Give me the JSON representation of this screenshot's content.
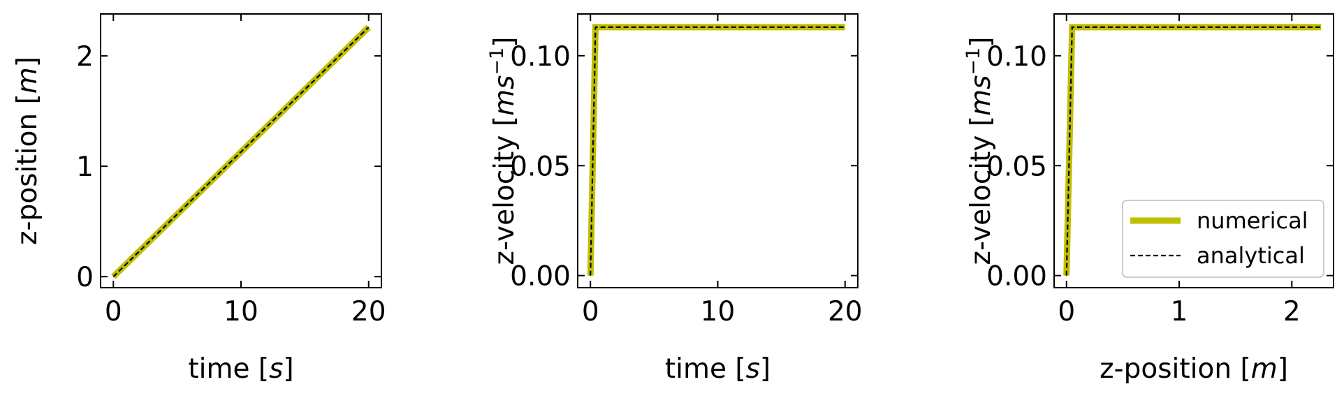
{
  "colors": {
    "numerical": "#bfbf00",
    "analytical": "#000000",
    "axes": "#000000",
    "legend_border": "#cccccc",
    "background": "#ffffff"
  },
  "legend": {
    "placement": "lower-right",
    "subplot": 2,
    "entries": [
      {
        "series": "numerical",
        "label": "numerical",
        "style": "thick-solid"
      },
      {
        "series": "analytical",
        "label": "analytical",
        "style": "dashed"
      }
    ]
  },
  "chart_data": [
    {
      "type": "line",
      "xlabel": "time [s]",
      "xlabel_parts": [
        "time [",
        "s",
        "]"
      ],
      "ylabel": "z-position [m]",
      "ylabel_parts": [
        "z-position [",
        "m",
        "]"
      ],
      "xlim": [
        -1.0,
        21.0
      ],
      "ylim": [
        -0.1,
        2.38
      ],
      "xticks": [
        0,
        10,
        20
      ],
      "xticklabels": [
        "0",
        "10",
        "20"
      ],
      "yticks": [
        0,
        1,
        2
      ],
      "yticklabels": [
        "0",
        "1",
        "2"
      ],
      "grid": false,
      "series": [
        {
          "name": "numerical",
          "x": [
            0,
            20
          ],
          "y": [
            0.0,
            2.26
          ]
        },
        {
          "name": "analytical",
          "x": [
            0,
            20
          ],
          "y": [
            0.0,
            2.26
          ]
        }
      ]
    },
    {
      "type": "line",
      "xlabel": "time [s]",
      "xlabel_parts": [
        "time [",
        "s",
        "]"
      ],
      "ylabel": "z-velocity [ms^-1]",
      "ylabel_parts": [
        "z-velocity [",
        "ms",
        "−1",
        "]"
      ],
      "xlim": [
        -1.0,
        21.0
      ],
      "ylim": [
        -0.0055,
        0.119
      ],
      "xticks": [
        0,
        10,
        20
      ],
      "xticklabels": [
        "0",
        "10",
        "20"
      ],
      "yticks": [
        0.0,
        0.05,
        0.1
      ],
      "yticklabels": [
        "0.00",
        "0.05",
        "0.10"
      ],
      "grid": false,
      "series": [
        {
          "name": "numerical",
          "x": [
            0,
            0.4,
            20
          ],
          "y": [
            0.0,
            0.113,
            0.113
          ]
        },
        {
          "name": "analytical",
          "x": [
            0,
            0.4,
            20
          ],
          "y": [
            0.0,
            0.113,
            0.113
          ]
        }
      ]
    },
    {
      "type": "line",
      "xlabel": "z-position [m]",
      "xlabel_parts": [
        "z-position [",
        "m",
        "]"
      ],
      "ylabel": "z-velocity [ms^-1]",
      "ylabel_parts": [
        "z-velocity [",
        "ms",
        "−1",
        "]"
      ],
      "xlim": [
        -0.11,
        2.37
      ],
      "ylim": [
        -0.0055,
        0.119
      ],
      "xticks": [
        0,
        1,
        2
      ],
      "xticklabels": [
        "0",
        "1",
        "2"
      ],
      "yticks": [
        0.0,
        0.05,
        0.1
      ],
      "yticklabels": [
        "0.00",
        "0.05",
        "0.10"
      ],
      "grid": false,
      "series": [
        {
          "name": "numerical",
          "x": [
            0,
            0.05,
            2.26
          ],
          "y": [
            0.0,
            0.113,
            0.113
          ]
        },
        {
          "name": "analytical",
          "x": [
            0,
            0.05,
            2.26
          ],
          "y": [
            0.0,
            0.113,
            0.113
          ]
        }
      ]
    }
  ]
}
